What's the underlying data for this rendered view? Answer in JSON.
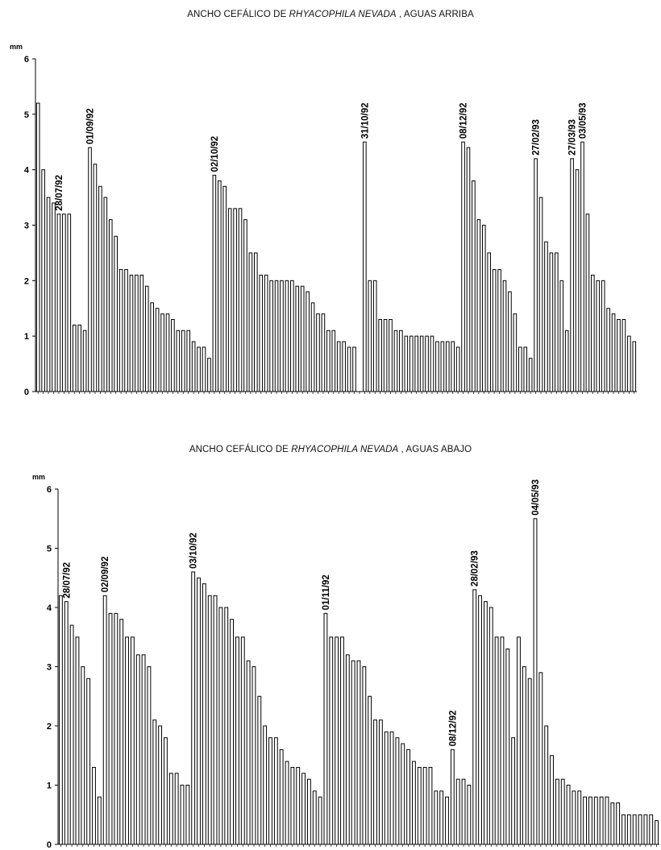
{
  "chart_data": [
    {
      "type": "bar",
      "title_prefix": "ANCHO CEFÁLICO DE ",
      "title_species": "RHYACOPHILA NEVADA",
      "title_suffix": " , AGUAS ARRIBA",
      "ylabel": "mm",
      "ylim": [
        0,
        6
      ],
      "yticks": [
        0,
        1,
        2,
        3,
        4,
        5,
        6
      ],
      "grid": false,
      "values": [
        5.2,
        4.0,
        3.5,
        3.4,
        3.2,
        3.2,
        3.2,
        1.2,
        1.2,
        1.1,
        4.4,
        4.1,
        3.7,
        3.5,
        3.1,
        2.8,
        2.2,
        2.2,
        2.1,
        2.1,
        2.1,
        1.9,
        1.6,
        1.5,
        1.4,
        1.4,
        1.3,
        1.1,
        1.1,
        1.1,
        0.9,
        0.8,
        0.8,
        0.6,
        3.9,
        3.8,
        3.7,
        3.3,
        3.3,
        3.3,
        3.1,
        2.5,
        2.5,
        2.1,
        2.1,
        2.0,
        2.0,
        2.0,
        2.0,
        2.0,
        1.9,
        1.9,
        1.8,
        1.6,
        1.4,
        1.4,
        1.1,
        1.1,
        0.9,
        0.9,
        0.8,
        0.8,
        0,
        4.5,
        2.0,
        2.0,
        1.3,
        1.3,
        1.3,
        1.1,
        1.1,
        1.0,
        1.0,
        1.0,
        1.0,
        1.0,
        1.0,
        0.9,
        0.9,
        0.9,
        0.9,
        0.8,
        4.5,
        4.4,
        3.8,
        3.1,
        3.0,
        2.5,
        2.2,
        2.2,
        2.0,
        1.8,
        1.4,
        0.8,
        0.8,
        0.6,
        4.2,
        3.5,
        2.7,
        2.5,
        2.5,
        2.0,
        1.1,
        4.2,
        4.0,
        4.5,
        3.2,
        2.1,
        2.0,
        2.0,
        1.5,
        1.4,
        1.3,
        1.3,
        1.0,
        0.9
      ],
      "annotations": [
        {
          "text": "28/07/92",
          "index": 4
        },
        {
          "text": "01/09/92",
          "index": 10
        },
        {
          "text": "02/10/92",
          "index": 34
        },
        {
          "text": "31/10/92",
          "index": 63
        },
        {
          "text": "08/12/92",
          "index": 82
        },
        {
          "text": "27/02/93",
          "index": 96
        },
        {
          "text": "27/03/93",
          "index": 103
        },
        {
          "text": "03/05/93",
          "index": 105
        }
      ]
    },
    {
      "type": "bar",
      "title_prefix": "ANCHO CEFÁLICO DE ",
      "title_species": "RHYACOPHILA NEVADA",
      "title_suffix": " , AGUAS ABAJO",
      "ylabel": "mm",
      "ylim": [
        0,
        6
      ],
      "yticks": [
        0,
        1,
        2,
        3,
        4,
        5,
        6
      ],
      "grid": false,
      "values": [
        4.2,
        4.1,
        3.7,
        3.5,
        3.0,
        2.8,
        1.3,
        0.8,
        4.2,
        3.9,
        3.9,
        3.8,
        3.5,
        3.5,
        3.2,
        3.2,
        3.0,
        2.1,
        2.0,
        1.8,
        1.2,
        1.2,
        1.0,
        1.0,
        4.6,
        4.5,
        4.4,
        4.2,
        4.2,
        4.0,
        4.0,
        3.8,
        3.5,
        3.5,
        3.1,
        3.0,
        2.5,
        2.0,
        1.8,
        1.8,
        1.6,
        1.4,
        1.3,
        1.3,
        1.2,
        1.1,
        0.9,
        0.8,
        3.9,
        3.5,
        3.5,
        3.5,
        3.2,
        3.1,
        3.1,
        3.0,
        2.5,
        2.1,
        2.1,
        1.9,
        1.9,
        1.8,
        1.7,
        1.6,
        1.4,
        1.3,
        1.3,
        1.3,
        0.9,
        0.9,
        0.8,
        1.6,
        1.1,
        1.1,
        1.0,
        4.3,
        4.2,
        4.1,
        4.0,
        3.5,
        3.5,
        3.3,
        1.8,
        3.5,
        3.0,
        2.8,
        5.5,
        2.9,
        2.0,
        1.5,
        1.1,
        1.1,
        1.0,
        0.9,
        0.9,
        0.8,
        0.8,
        0.8,
        0.8,
        0.8,
        0.7,
        0.7,
        0.5,
        0.5,
        0.5,
        0.5,
        0.5,
        0.5,
        0.4
      ],
      "annotations": [
        {
          "text": "28/07/92",
          "index": 1
        },
        {
          "text": "02/09/92",
          "index": 8
        },
        {
          "text": "03/10/92",
          "index": 24
        },
        {
          "text": "01/11/92",
          "index": 48
        },
        {
          "text": "08/12/92",
          "index": 71
        },
        {
          "text": "28/02/93",
          "index": 75
        },
        {
          "text": "04/05/93",
          "index": 86
        }
      ]
    }
  ]
}
